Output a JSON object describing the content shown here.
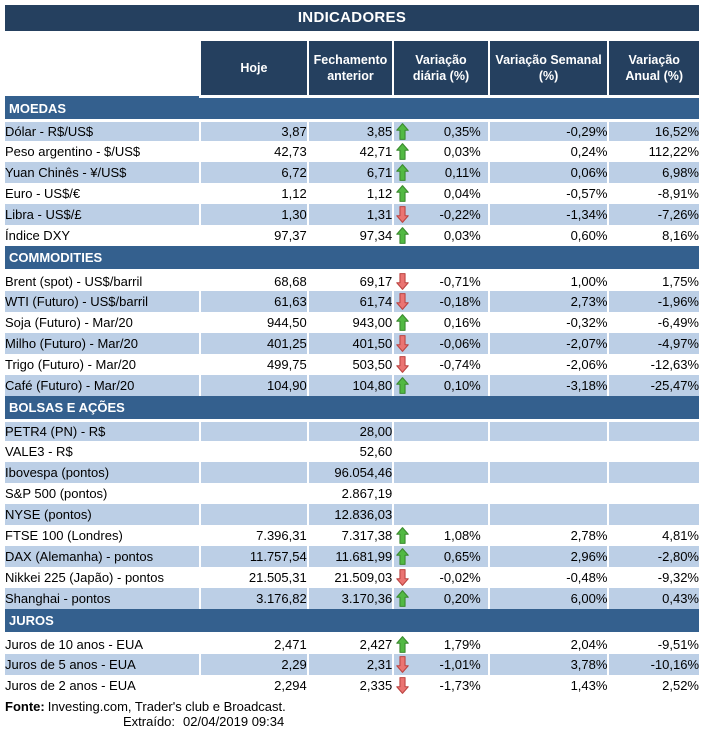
{
  "title": "INDICADORES",
  "columns": [
    "Hoje",
    "Fechamento anterior",
    "Variação diária (%)",
    "Variação Semanal (%)",
    "Variação Anual (%)"
  ],
  "sections": [
    {
      "name": "MOEDAS",
      "rows": [
        {
          "label": "Dólar - R$/US$",
          "hoje": "3,87",
          "fechamento": "3,85",
          "arrow": "up",
          "diaria": "0,35%",
          "semanal": "-0,29%",
          "anual": "16,52%"
        },
        {
          "label": "Peso argentino - $/US$",
          "hoje": "42,73",
          "fechamento": "42,71",
          "arrow": "up",
          "diaria": "0,03%",
          "semanal": "0,24%",
          "anual": "112,22%"
        },
        {
          "label": "Yuan Chinês - ¥/US$",
          "hoje": "6,72",
          "fechamento": "6,71",
          "arrow": "up",
          "diaria": "0,11%",
          "semanal": "0,06%",
          "anual": "6,98%"
        },
        {
          "label": "Euro - US$/€",
          "hoje": "1,12",
          "fechamento": "1,12",
          "arrow": "up",
          "diaria": "0,04%",
          "semanal": "-0,57%",
          "anual": "-8,91%"
        },
        {
          "label": "Libra - US$/£",
          "hoje": "1,30",
          "fechamento": "1,31",
          "arrow": "down",
          "diaria": "-0,22%",
          "semanal": "-1,34%",
          "anual": "-7,26%"
        },
        {
          "label": "Índice DXY",
          "hoje": "97,37",
          "fechamento": "97,34",
          "arrow": "up",
          "diaria": "0,03%",
          "semanal": "0,60%",
          "anual": "8,16%"
        }
      ]
    },
    {
      "name": "COMMODITIES",
      "rows": [
        {
          "label": "Brent (spot) - US$/barril",
          "hoje": "68,68",
          "fechamento": "69,17",
          "arrow": "down",
          "diaria": "-0,71%",
          "semanal": "1,00%",
          "anual": "1,75%"
        },
        {
          "label": "WTI (Futuro) - US$/barril",
          "hoje": "61,63",
          "fechamento": "61,74",
          "arrow": "down",
          "diaria": "-0,18%",
          "semanal": "2,73%",
          "anual": "-1,96%"
        },
        {
          "label": "Soja (Futuro) - Mar/20",
          "hoje": "944,50",
          "fechamento": "943,00",
          "arrow": "up",
          "diaria": "0,16%",
          "semanal": "-0,32%",
          "anual": "-6,49%"
        },
        {
          "label": "Milho (Futuro) - Mar/20",
          "hoje": "401,25",
          "fechamento": "401,50",
          "arrow": "down",
          "diaria": "-0,06%",
          "semanal": "-2,07%",
          "anual": "-4,97%"
        },
        {
          "label": "Trigo (Futuro) - Mar/20",
          "hoje": "499,75",
          "fechamento": "503,50",
          "arrow": "down",
          "diaria": "-0,74%",
          "semanal": "-2,06%",
          "anual": "-12,63%"
        },
        {
          "label": "Café (Futuro) - Mar/20",
          "hoje": "104,90",
          "fechamento": "104,80",
          "arrow": "up",
          "diaria": "0,10%",
          "semanal": "-3,18%",
          "anual": "-25,47%"
        }
      ]
    },
    {
      "name": "BOLSAS E AÇÕES",
      "rows": [
        {
          "label": "PETR4 (PN) - R$",
          "hoje": "",
          "fechamento": "28,00",
          "arrow": "none",
          "diaria": "",
          "semanal": "",
          "anual": ""
        },
        {
          "label": "VALE3 - R$",
          "hoje": "",
          "fechamento": "52,60",
          "arrow": "none",
          "diaria": "",
          "semanal": "",
          "anual": ""
        },
        {
          "label": "Ibovespa (pontos)",
          "hoje": "",
          "fechamento": "96.054,46",
          "arrow": "none",
          "diaria": "",
          "semanal": "",
          "anual": ""
        },
        {
          "label": "S&P 500 (pontos)",
          "hoje": "",
          "fechamento": "2.867,19",
          "arrow": "none",
          "diaria": "",
          "semanal": "",
          "anual": ""
        },
        {
          "label": "NYSE (pontos)",
          "hoje": "",
          "fechamento": "12.836,03",
          "arrow": "none",
          "diaria": "",
          "semanal": "",
          "anual": ""
        },
        {
          "label": "FTSE 100 (Londres)",
          "hoje": "7.396,31",
          "fechamento": "7.317,38",
          "arrow": "up",
          "diaria": "1,08%",
          "semanal": "2,78%",
          "anual": "4,81%"
        },
        {
          "label": "DAX (Alemanha) - pontos",
          "hoje": "11.757,54",
          "fechamento": "11.681,99",
          "arrow": "up",
          "diaria": "0,65%",
          "semanal": "2,96%",
          "anual": "-2,80%"
        },
        {
          "label": "Nikkei 225 (Japão) - pontos",
          "hoje": "21.505,31",
          "fechamento": "21.509,03",
          "arrow": "down",
          "diaria": "-0,02%",
          "semanal": "-0,48%",
          "anual": "-9,32%"
        },
        {
          "label": "Shanghai - pontos",
          "hoje": "3.176,82",
          "fechamento": "3.170,36",
          "arrow": "up",
          "diaria": "0,20%",
          "semanal": "6,00%",
          "anual": "0,43%"
        }
      ]
    },
    {
      "name": "JUROS",
      "rows": [
        {
          "label": "Juros de 10 anos - EUA",
          "hoje": "2,471",
          "fechamento": "2,427",
          "arrow": "up",
          "diaria": "1,79%",
          "semanal": "2,04%",
          "anual": "-9,51%"
        },
        {
          "label": "Juros de 5 anos - EUA",
          "hoje": "2,29",
          "fechamento": "2,31",
          "arrow": "down",
          "diaria": "-1,01%",
          "semanal": "3,78%",
          "anual": "-10,16%"
        },
        {
          "label": "Juros de 2 anos - EUA",
          "hoje": "2,294",
          "fechamento": "2,335",
          "arrow": "down",
          "diaria": "-1,73%",
          "semanal": "1,43%",
          "anual": "2,52%"
        }
      ]
    }
  ],
  "footer": {
    "fonte_label": "Fonte:",
    "fonte_text": "Investing.com, Trader's club e Broadcast.",
    "extraido_label": "Extraído:",
    "extraido_value": "02/04/2019 09:34"
  },
  "colors": {
    "header_navy": "#25405F",
    "section_blue": "#34608E",
    "row_light_blue": "#BCCFE6",
    "arrow_up_fill": "#52B943",
    "arrow_up_stroke": "#3A8A2E",
    "arrow_down_fill": "#EA7472",
    "arrow_down_stroke": "#BB4441"
  }
}
